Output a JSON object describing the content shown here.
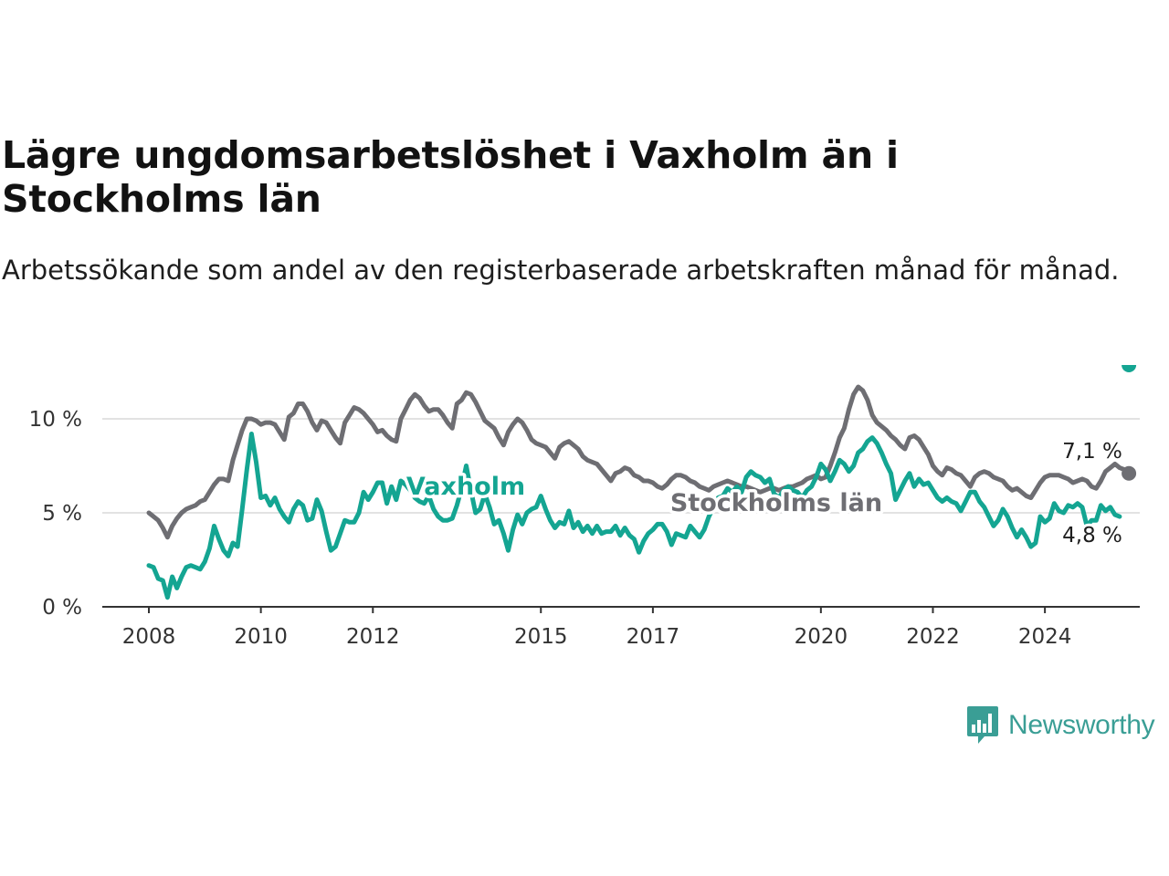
{
  "title": "Lägre ungdomsarbetslöshet i Vaxholm än i Stockholms län",
  "subtitle": "Arbetssökande som andel av den registerbaserade arbetskraften månad för månad.",
  "brand": {
    "name": "Newsworthy",
    "color": "#3a9e95"
  },
  "chart_data": {
    "type": "line",
    "x_start": "2008-01",
    "x_frequency": "monthly",
    "x_ticks": [
      "2008",
      "2010",
      "2012",
      "2015",
      "2017",
      "2020",
      "2022",
      "2024"
    ],
    "y_ticks": [
      "0 %",
      "5 %",
      "10 %"
    ],
    "ylim": [
      0,
      10
    ],
    "grid": true,
    "end_labels": {
      "stockholm": "7,1 %",
      "vaxholm": "4,8 %"
    },
    "series": [
      {
        "name": "Stockholms län",
        "color": "#6e6e73",
        "values": [
          5.0,
          4.8,
          4.6,
          4.2,
          3.7,
          4.3,
          4.7,
          5.0,
          5.2,
          5.3,
          5.4,
          5.6,
          5.7,
          6.1,
          6.5,
          6.8,
          6.8,
          6.7,
          7.8,
          8.6,
          9.4,
          10.0,
          10.0,
          9.9,
          9.7,
          9.8,
          9.8,
          9.7,
          9.3,
          8.9,
          10.1,
          10.3,
          10.8,
          10.8,
          10.4,
          9.8,
          9.4,
          9.9,
          9.8,
          9.4,
          9.0,
          8.7,
          9.8,
          10.2,
          10.6,
          10.5,
          10.3,
          10.0,
          9.7,
          9.3,
          9.4,
          9.1,
          8.9,
          8.8,
          10.0,
          10.5,
          11.0,
          11.3,
          11.1,
          10.7,
          10.4,
          10.5,
          10.5,
          10.2,
          9.8,
          9.5,
          10.8,
          11.0,
          11.4,
          11.3,
          10.9,
          10.4,
          9.9,
          9.7,
          9.5,
          9.0,
          8.6,
          9.3,
          9.7,
          10.0,
          9.8,
          9.4,
          8.9,
          8.7,
          8.6,
          8.5,
          8.2,
          7.9,
          8.5,
          8.7,
          8.8,
          8.6,
          8.4,
          8.0,
          7.8,
          7.7,
          7.6,
          7.3,
          7.0,
          6.7,
          7.1,
          7.2,
          7.4,
          7.3,
          7.0,
          6.9,
          6.7,
          6.7,
          6.6,
          6.4,
          6.3,
          6.5,
          6.8,
          7.0,
          7.0,
          6.9,
          6.7,
          6.6,
          6.4,
          6.3,
          6.2,
          6.4,
          6.5,
          6.6,
          6.7,
          6.6,
          6.5,
          6.4,
          6.4,
          6.3,
          6.2,
          6.1,
          6.2,
          6.3,
          6.3,
          6.2,
          6.3,
          6.4,
          6.4,
          6.5,
          6.6,
          6.8,
          6.9,
          7.0,
          6.8,
          6.9,
          7.5,
          8.2,
          9.0,
          9.5,
          10.5,
          11.3,
          11.7,
          11.5,
          11.0,
          10.2,
          9.8,
          9.6,
          9.4,
          9.1,
          8.9,
          8.6,
          8.4,
          9.0,
          9.1,
          8.9,
          8.5,
          8.1,
          7.5,
          7.2,
          7.0,
          7.4,
          7.3,
          7.1,
          7.0,
          6.7,
          6.4,
          6.9,
          7.1,
          7.2,
          7.1,
          6.9,
          6.8,
          6.7,
          6.4,
          6.2,
          6.3,
          6.1,
          5.9,
          5.8,
          6.2,
          6.6,
          6.9,
          7.0,
          7.0,
          7.0,
          6.9,
          6.8,
          6.6,
          6.7,
          6.8,
          6.7,
          6.4,
          6.3,
          6.7,
          7.2,
          7.4,
          7.6,
          7.4,
          7.3,
          7.1
        ]
      },
      {
        "name": "Vaxholm",
        "color": "#14a592",
        "values": [
          2.2,
          2.1,
          1.5,
          1.4,
          0.5,
          1.6,
          1.0,
          1.6,
          2.1,
          2.2,
          2.1,
          2.0,
          2.4,
          3.1,
          4.3,
          3.6,
          3.0,
          2.7,
          3.4,
          3.2,
          5.2,
          7.3,
          9.2,
          7.7,
          5.8,
          5.9,
          5.4,
          5.8,
          5.2,
          4.8,
          4.5,
          5.2,
          5.6,
          5.4,
          4.6,
          4.7,
          5.7,
          5.1,
          4.0,
          3.0,
          3.2,
          3.9,
          4.6,
          4.5,
          4.5,
          5.0,
          6.1,
          5.7,
          6.1,
          6.6,
          6.6,
          5.5,
          6.4,
          5.7,
          6.7,
          6.5,
          6.2,
          5.8,
          5.6,
          5.5,
          5.9,
          5.2,
          4.8,
          4.6,
          4.6,
          4.7,
          5.4,
          6.3,
          7.5,
          6.2,
          5.0,
          5.2,
          6.0,
          5.3,
          4.4,
          4.6,
          3.9,
          3.0,
          4.1,
          4.9,
          4.4,
          5.0,
          5.2,
          5.3,
          5.9,
          5.2,
          4.6,
          4.2,
          4.5,
          4.4,
          5.1,
          4.2,
          4.5,
          4.0,
          4.3,
          3.9,
          4.3,
          3.9,
          4.0,
          4.0,
          4.3,
          3.8,
          4.2,
          3.8,
          3.6,
          2.9,
          3.5,
          3.9,
          4.1,
          4.4,
          4.4,
          4.0,
          3.3,
          3.9,
          3.8,
          3.7,
          4.3,
          4.0,
          3.7,
          4.1,
          4.8,
          5.3,
          5.8,
          5.9,
          6.3,
          6.1,
          6.4,
          6.1,
          6.9,
          7.2,
          7.0,
          6.9,
          6.6,
          6.8,
          6.0,
          5.8,
          6.2,
          6.4,
          6.2,
          6.1,
          5.8,
          6.2,
          6.4,
          6.9,
          7.6,
          7.3,
          6.7,
          7.2,
          7.8,
          7.6,
          7.2,
          7.5,
          8.2,
          8.4,
          8.8,
          9.0,
          8.7,
          8.2,
          7.6,
          7.1,
          5.7,
          6.2,
          6.7,
          7.1,
          6.4,
          6.8,
          6.5,
          6.6,
          6.2,
          5.8,
          5.6,
          5.8,
          5.6,
          5.5,
          5.1,
          5.6,
          6.1,
          6.1,
          5.6,
          5.3,
          4.8,
          4.3,
          4.6,
          5.2,
          4.8,
          4.2,
          3.7,
          4.1,
          3.7,
          3.2,
          3.4,
          4.8,
          4.5,
          4.7,
          5.5,
          5.1,
          5.0,
          5.4,
          5.3,
          5.5,
          5.3,
          4.3,
          4.6,
          4.6,
          5.4,
          5.1,
          5.3,
          4.9,
          4.8
        ]
      }
    ]
  }
}
